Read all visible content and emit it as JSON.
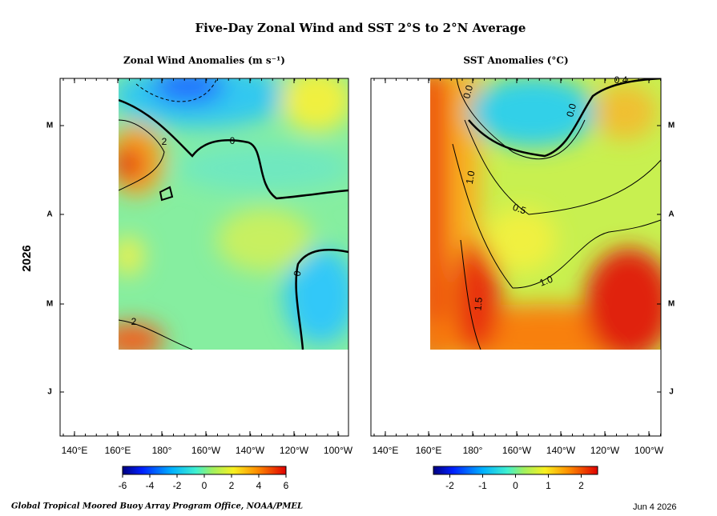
{
  "title": "Five-Day Zonal Wind and SST  2°S to 2°N Average",
  "y_axis_label": "2026",
  "month_labels": [
    "M",
    "A",
    "M",
    "J"
  ],
  "footer": "Global Tropical Moored Buoy Array Program Office, NOAA/PMEL",
  "date": "Jun  4 2026",
  "panels": [
    {
      "title": "Zonal Wind Anomalies (m s⁻¹)",
      "x_tick_labels": [
        "140°E",
        "160°E",
        "180°",
        "160°W",
        "140°W",
        "120°W",
        "100°W"
      ],
      "colorbar_lim": [
        -6,
        6
      ],
      "colorbar_ticks": [
        -6,
        -4,
        -2,
        0,
        2,
        4,
        6
      ],
      "contour_labels": [
        "2",
        "0",
        "0",
        "2"
      ]
    },
    {
      "title": "SST Anomalies (°C)",
      "x_tick_labels": [
        "140°E",
        "160°E",
        "180°",
        "160°W",
        "140°W",
        "120°W",
        "100°W"
      ],
      "colorbar_lim": [
        -2.5,
        2.5
      ],
      "colorbar_ticks": [
        -2,
        -1,
        0,
        1,
        2
      ],
      "contour_labels": [
        "0.0",
        "0.0",
        "0.4",
        "1.0",
        "0.5",
        "1.0",
        "1.5"
      ]
    }
  ]
}
